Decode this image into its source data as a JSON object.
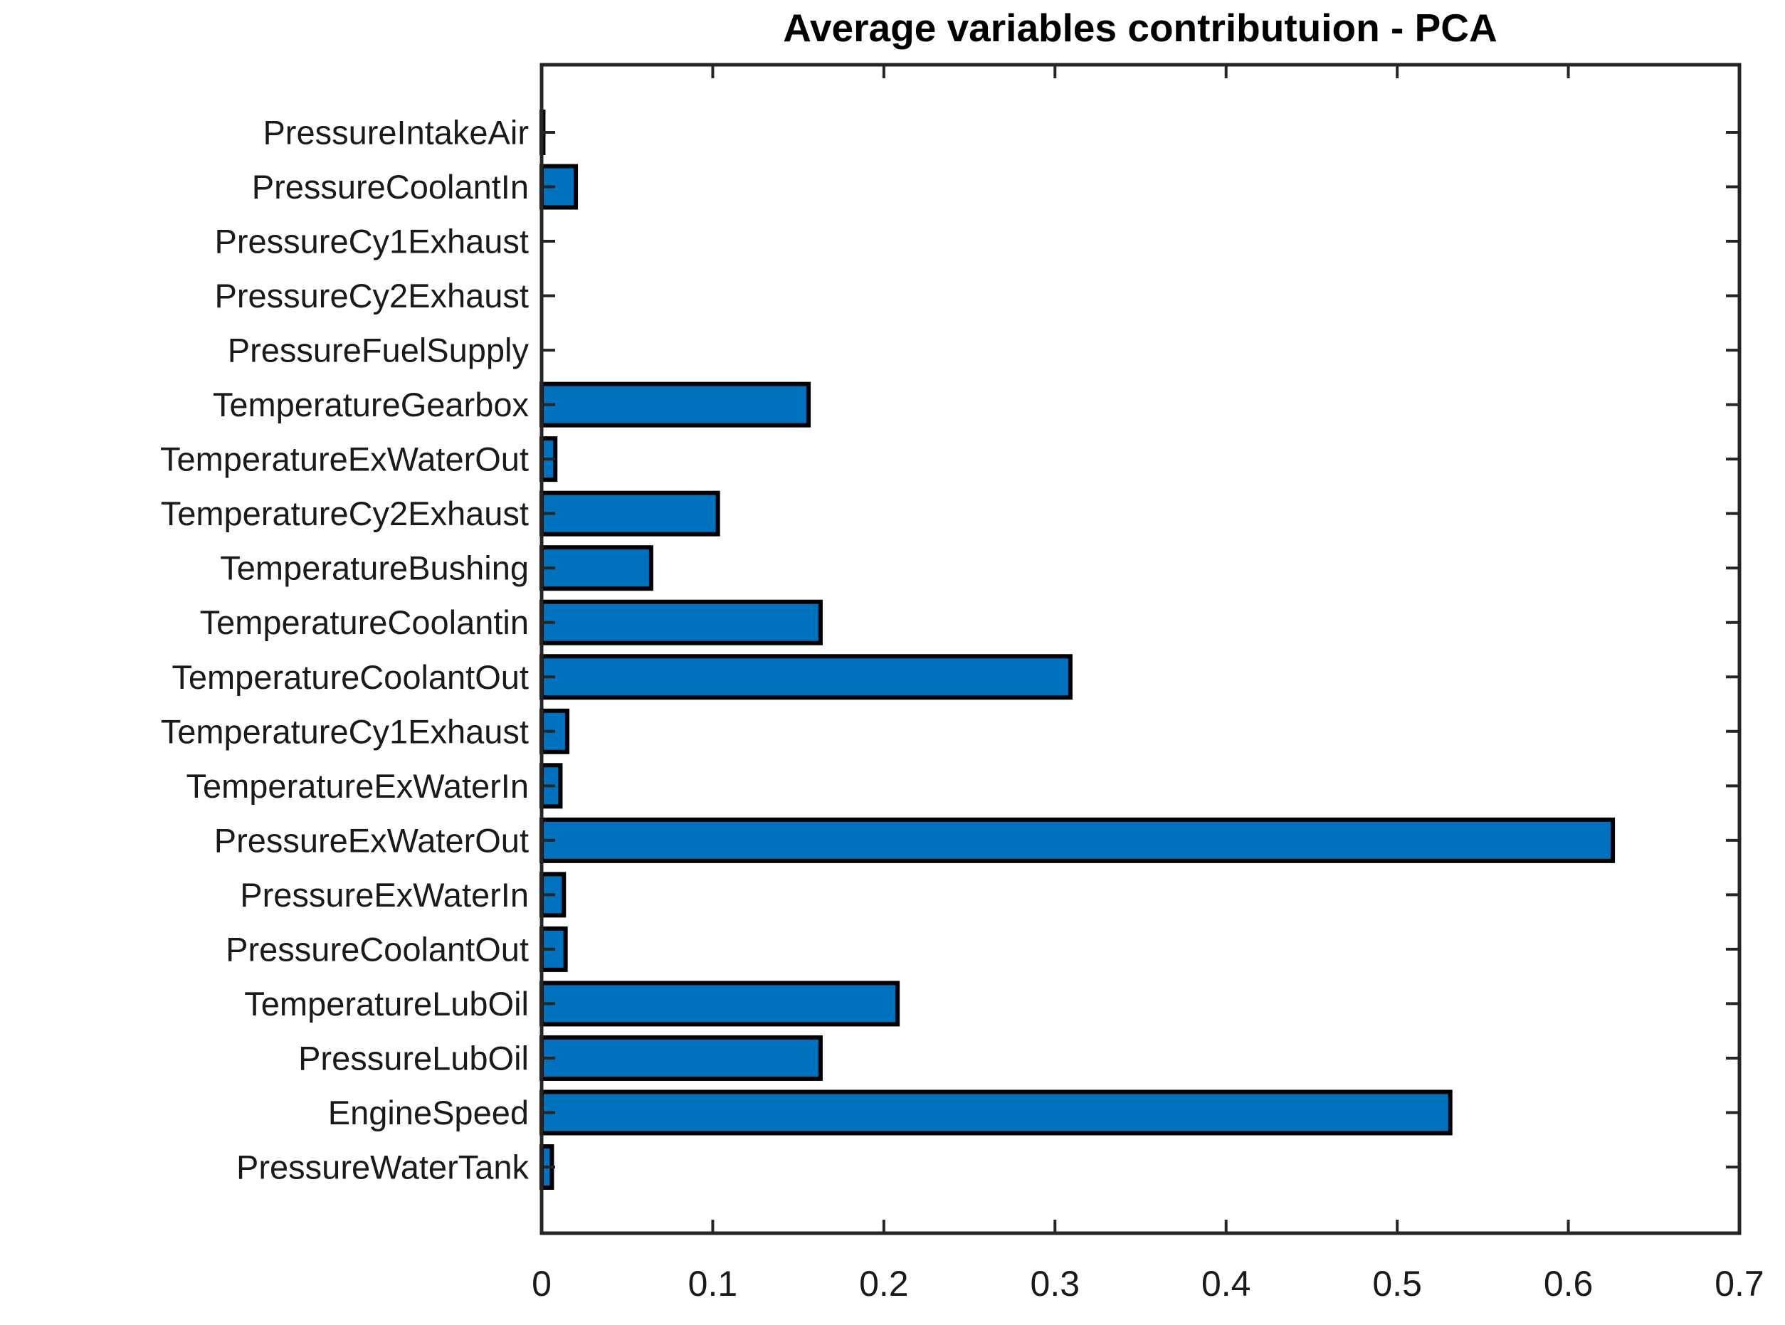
{
  "chart_data": {
    "type": "bar",
    "orientation": "horizontal",
    "title": "Average variables contributuion - PCA",
    "categories": [
      "PressureIntakeAir",
      "PressureCoolantIn",
      "PressureCy1Exhaust",
      "PressureCy2Exhaust",
      "PressureFuelSupply",
      "TemperatureGearbox",
      "TemperatureExWaterOut",
      "TemperatureCy2Exhaust",
      "TemperatureBushing",
      "TemperatureCoolantin",
      "TemperatureCoolantOut",
      "TemperatureCy1Exhaust",
      "TemperatureExWaterIn",
      "PressureExWaterOut",
      "PressureExWaterIn",
      "PressureCoolantOut",
      "TemperatureLubOil",
      "PressureLubOil",
      "EngineSpeed",
      "PressureWaterTank"
    ],
    "values": [
      0.001,
      0.02,
      0.0,
      0.0,
      0.0,
      0.156,
      0.008,
      0.103,
      0.064,
      0.163,
      0.309,
      0.015,
      0.011,
      0.626,
      0.013,
      0.014,
      0.208,
      0.163,
      0.531,
      0.006
    ],
    "xlabel": "",
    "ylabel": "",
    "xlim": [
      0,
      0.7
    ],
    "x_ticks": [
      0,
      0.1,
      0.2,
      0.3,
      0.4,
      0.5,
      0.6,
      0.7
    ],
    "x_tick_labels": [
      "0",
      "0.1",
      "0.2",
      "0.3",
      "0.4",
      "0.5",
      "0.6",
      "0.7"
    ],
    "grid": false,
    "legend": null,
    "colors": {
      "bar_fill": "#0072BD",
      "bar_edge": "#000000",
      "axis_line": "#262626",
      "tick_text": "#1a1a1a",
      "title_text": "#000000",
      "background": "#ffffff"
    }
  }
}
